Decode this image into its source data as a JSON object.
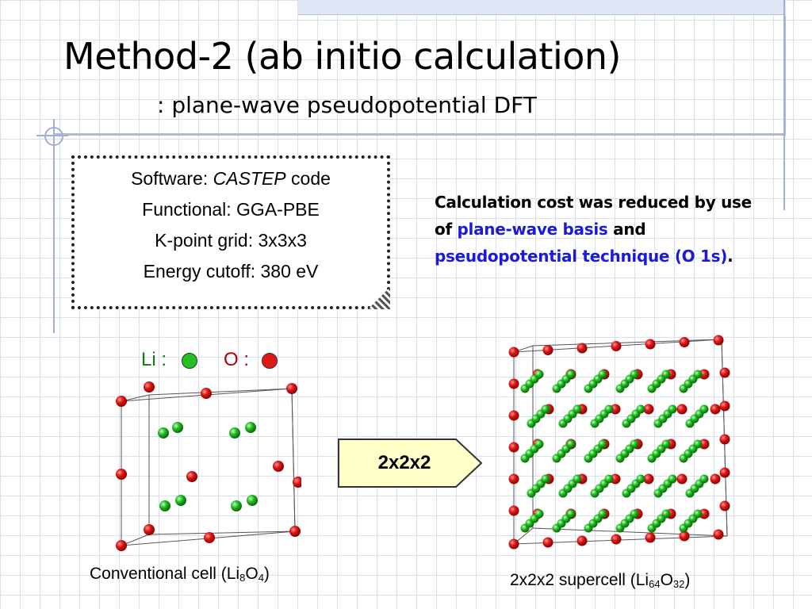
{
  "title": {
    "main": "Method-2 (ab initio calculation)",
    "sub": ": plane-wave pseudopotential DFT"
  },
  "specs": {
    "software_prefix": "Software: ",
    "software_name": "CASTEP",
    "software_suffix": " code",
    "functional": "Functional: GGA-PBE",
    "kpoints": "K-point grid: 3x3x3",
    "cutoff": "Energy cutoff: 380 eV"
  },
  "note": {
    "part1": "Calculation cost was reduced by use of ",
    "highlight1": "plane-wave basis",
    "part2": " and ",
    "highlight2": "pseudopotential technique (O 1s)",
    "part3": ".",
    "highlight_color": "#1a1adc"
  },
  "legend": {
    "li_label": "Li :",
    "o_label": "O :",
    "li_color": "#22c022",
    "o_color": "#e01818"
  },
  "arrow": {
    "label": "2x2x2",
    "fill": "#ffffc8"
  },
  "captions": {
    "left_prefix": "Conventional cell (Li",
    "left_sub1": "8",
    "left_mid": "O",
    "left_sub2": "4",
    "left_suffix": ")",
    "right_prefix": "2x2x2 supercell (Li",
    "right_sub1": "64",
    "right_mid": "O",
    "right_sub2": "32",
    "right_suffix": ")"
  },
  "icons": {
    "legend_li": "green-sphere-icon",
    "legend_o": "red-sphere-icon",
    "unit_cell": "unit-cell-diagram",
    "supercell": "supercell-diagram",
    "arrow": "right-arrow-icon"
  }
}
